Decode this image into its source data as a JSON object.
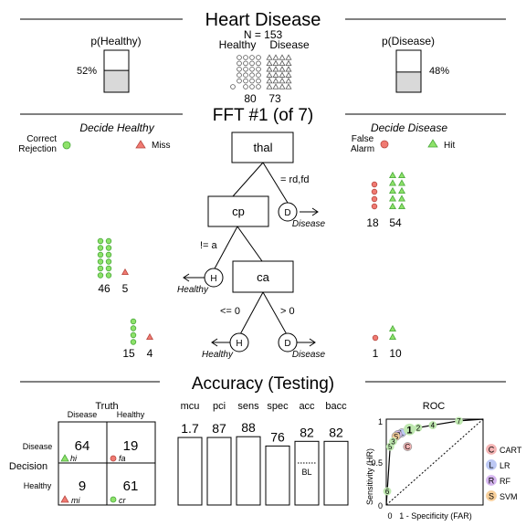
{
  "header": {
    "title": "Heart Disease",
    "n_label": "N = 153",
    "healthy_label": "Healthy",
    "disease_label": "Disease",
    "healthy_count": "80",
    "disease_count": "73",
    "p_healthy_label": "p(Healthy)",
    "p_healthy_value": "52%",
    "p_healthy_fraction": 0.52,
    "p_disease_label": "p(Disease)",
    "p_disease_value": "48%",
    "p_disease_fraction": 0.48
  },
  "tree": {
    "title": "FFT #1 (of 7)",
    "left_heading": "Decide Healthy",
    "right_heading": "Decide Disease",
    "cr_label": [
      "Correct",
      "Rejection"
    ],
    "miss_label": "Miss",
    "fa_label": [
      "False",
      "Alarm"
    ],
    "hit_label": "Hit",
    "nodes": [
      "thal",
      "cp",
      "ca"
    ],
    "branch_labels": [
      "= rd,fd",
      "!= a",
      "<= 0",
      "> 0"
    ],
    "exit_letters": {
      "disease": "D",
      "healthy": "H"
    },
    "exit_names": {
      "disease": "Disease",
      "healthy": "Healthy"
    },
    "levels": [
      {
        "side": "disease",
        "correct": 54,
        "wrong": 18,
        "correct_label": "54",
        "wrong_label": "18"
      },
      {
        "side": "healthy",
        "correct": 46,
        "wrong": 5,
        "correct_label": "46",
        "wrong_label": "5"
      },
      {
        "side": "healthy",
        "correct": 15,
        "wrong": 4,
        "correct_label": "15",
        "wrong_label": "4"
      },
      {
        "side": "disease",
        "correct": 10,
        "wrong": 1,
        "correct_label": "10",
        "wrong_label": "1"
      }
    ]
  },
  "accuracy": {
    "title": "Accuracy (Testing)",
    "truth_label": "Truth",
    "decision_label": "Decision",
    "col_disease": "Disease",
    "col_healthy": "Healthy",
    "row_disease": "Disease",
    "row_healthy": "Healthy",
    "hi": "64",
    "hi_label": "hi",
    "fa": "19",
    "fa_label": "fa",
    "mi": "9",
    "mi_label": "mi",
    "cr": "61",
    "cr_label": "cr",
    "stats": [
      {
        "name": "mcu",
        "value": "1.7",
        "fill": 0.87
      },
      {
        "name": "pci",
        "value": "87",
        "fill": 0.87
      },
      {
        "name": "sens",
        "value": "88",
        "fill": 0.88
      },
      {
        "name": "spec",
        "value": "76",
        "fill": 0.76
      },
      {
        "name": "acc",
        "value": "82",
        "fill": 0.82
      },
      {
        "name": "bacc",
        "value": "82",
        "fill": 0.82
      }
    ],
    "baseline_label": "BL"
  },
  "roc": {
    "title": "ROC",
    "ylabel": "Sensitivity (HR)",
    "xlabel": "1 - Specificity (FAR)",
    "tick_0": "0",
    "tick_1": "1",
    "tick_05": "0.5",
    "fft_points": [
      {
        "far": 0.0,
        "hr": 0.0
      },
      {
        "far": 0.01,
        "hr": 0.16,
        "label": "6"
      },
      {
        "far": 0.04,
        "hr": 0.68,
        "label": "5"
      },
      {
        "far": 0.07,
        "hr": 0.74,
        "label": "3"
      },
      {
        "far": 0.24,
        "hr": 0.88,
        "label": "1"
      },
      {
        "far": 0.33,
        "hr": 0.9,
        "label": "2"
      },
      {
        "far": 0.48,
        "hr": 0.93,
        "label": "4"
      },
      {
        "far": 0.75,
        "hr": 0.98,
        "label": "7"
      },
      {
        "far": 1.0,
        "hr": 1.0
      }
    ],
    "models": [
      {
        "letter": "C",
        "name": "CART",
        "far": 0.22,
        "hr": 0.68,
        "color": "#f4b4b4",
        "text": "#d9534f"
      },
      {
        "letter": "L",
        "name": "LR",
        "far": 0.16,
        "hr": 0.84,
        "color": "#bcc8f4",
        "text": "#4a66c9"
      },
      {
        "letter": "R",
        "name": "RF",
        "far": 0.12,
        "hr": 0.82,
        "color": "#d6b6f0",
        "text": "#8a44c4"
      },
      {
        "letter": "S",
        "name": "SVM",
        "far": 0.1,
        "hr": 0.8,
        "color": "#f8cf9a",
        "text": "#e08a1e"
      }
    ]
  },
  "colors": {
    "correct_fill": "#8ee26a",
    "correct_stroke": "#49a83a",
    "wrong_fill": "#f07a72",
    "wrong_stroke": "#b84840",
    "gray_fill": "#d9d9d9"
  }
}
